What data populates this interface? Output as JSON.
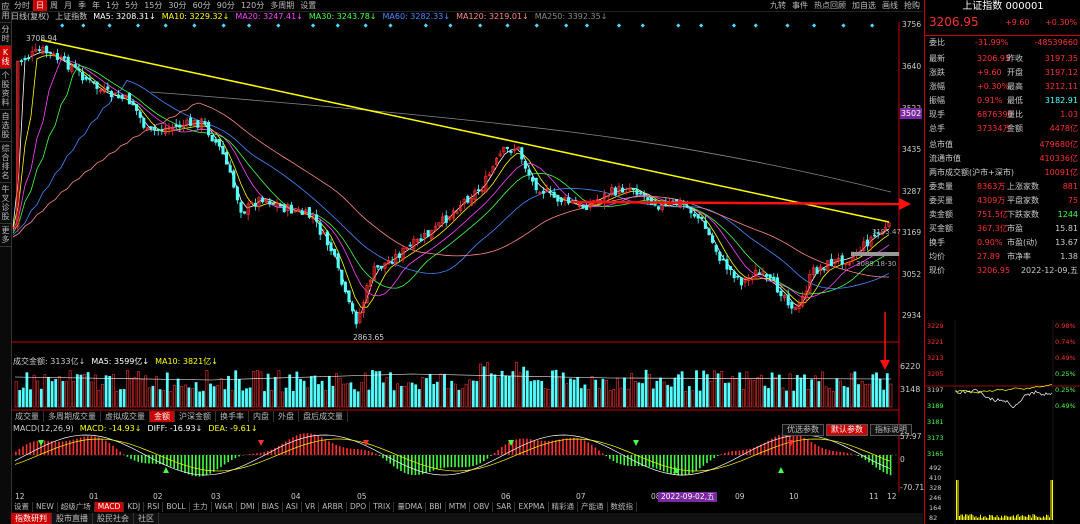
{
  "left_tabs": [
    "应用",
    "分时",
    "K线",
    "个股资料",
    "自选股",
    "综合排名",
    "牛叉诊股",
    "更多"
  ],
  "toolbar": {
    "periods": [
      "分时",
      "日",
      "周",
      "月",
      "季",
      "年",
      "1分",
      "5分",
      "15分",
      "30分",
      "60分",
      "90分",
      "120分",
      "多周期",
      "设置"
    ],
    "active_period": "日",
    "right_items": [
      "九转",
      "事件",
      "热点回顾",
      "加自选",
      "画线",
      "抢购"
    ]
  },
  "ma_line": {
    "prefix": "日线(复权)",
    "name": "上证指数",
    "ma5": "MA5: 3208.31↓",
    "ma10": "MA10: 3229.32↓",
    "ma20": "MA20: 3247.41↓",
    "ma30": "MA30: 3243.78↓",
    "ma60": "MA60: 3282.33↓",
    "ma120": "MA120: 3219.01↓",
    "ma250": "MA250: 3392.35↓"
  },
  "colors": {
    "up": "#ff3030",
    "down": "#54ffff",
    "ma5": "#ffffff",
    "ma10": "#ffff00",
    "ma20": "#ff44ff",
    "ma30": "#44ff44",
    "ma60": "#4488ff",
    "ma120": "#ff8888",
    "ma250": "#888888",
    "accent": "#cc0000"
  },
  "price_axis": [
    "3756",
    "3640",
    "3522",
    "3435",
    "3287",
    "3169",
    "3052",
    "2934"
  ],
  "price_tag": "3502",
  "annotations": {
    "high": "3708.94",
    "low": "2863.65",
    "last_low": "3195.47",
    "last_low2": "3089.18-30"
  },
  "volume": {
    "label": "成交金额: 3133亿↓",
    "ma5": "MA5: 3599亿↓",
    "ma10": "MA10: 3821亿↓",
    "axis": [
      "6220",
      "3148"
    ]
  },
  "sub_tabs": [
    "成交量",
    "多周期成交量",
    "虚拟成交量",
    "金额",
    "沪深金额",
    "换手率",
    "内盘",
    "外盘",
    "盘后成交量"
  ],
  "active_sub_tab": "金额",
  "macd": {
    "label": "MACD(12,26,9)",
    "macd": "MACD: -14.93↓",
    "diff": "DIFF: -16.93↓",
    "dea": "DEA: -9.61↓",
    "axis": [
      "57.97",
      "0",
      "-70.71"
    ],
    "buttons": [
      "优选参数",
      "默认参数",
      "指标说明"
    ]
  },
  "x_axis": [
    "12",
    "01",
    "02",
    "03",
    "04",
    "05",
    "06",
    "07",
    "08",
    "09",
    "10",
    "11",
    "12"
  ],
  "x_marker": "2022-09-02,五",
  "indicator_tabs": [
    "设置",
    "NEW",
    "超级广场",
    "MACD",
    "KDJ",
    "RSI",
    "BOLL",
    "主力",
    "W&R",
    "DMI",
    "BIAS",
    "ASI",
    "VR",
    "ARBR",
    "DPO",
    "TRIX",
    "量DMA",
    "BBI",
    "MTM",
    "OBV",
    "SAR",
    "EXPMA",
    "精彩通",
    "产能通",
    "数统指"
  ],
  "active_indicator": "MACD",
  "bottom_tabs": [
    "指数研判",
    "股市直播",
    "股民社会",
    "社区"
  ],
  "rpanel": {
    "title": "上证指数 000001",
    "price": "3206.95",
    "change": "+9.60",
    "pct": "+0.30%",
    "weibi_label": "委比",
    "weibi": "-31.99%",
    "weicha": "-48539660",
    "rows": [
      [
        "最新",
        "3206.95",
        "昨收",
        "3197.35"
      ],
      [
        "涨跌",
        "+9.60",
        "开盘",
        "3197.12"
      ],
      [
        "涨幅",
        "+0.30%",
        "最高",
        "3212.11"
      ],
      [
        "振幅",
        "0.91%",
        "最低",
        "3182.91"
      ],
      [
        "现手",
        "6876390",
        "量比",
        "1.03"
      ],
      [
        "总手",
        "37334万",
        "金额",
        "4478亿"
      ]
    ],
    "rows2": [
      [
        "总市值",
        "",
        "",
        "479680亿"
      ],
      [
        "流通市值",
        "",
        "",
        "410336亿"
      ],
      [
        "两市成交额(沪市+深市)",
        "",
        "",
        "10091亿"
      ],
      [
        "委卖量",
        "8363万",
        "上涨家数",
        "881"
      ],
      [
        "委买量",
        "4309万",
        "平盘家数",
        "75"
      ],
      [
        "卖金额",
        "751.5亿",
        "下跌家数",
        "1244"
      ],
      [
        "买金额",
        "367.3亿",
        "市盈",
        "15.81"
      ],
      [
        "换手",
        "0.90%",
        "市盈(动)",
        "13.67"
      ],
      [
        "均价",
        "27.89",
        "市净率",
        "1.38"
      ],
      [
        "现价",
        "3206.95",
        "",
        "2022-12-09,五"
      ]
    ],
    "mini_axis_left": [
      "3229",
      "3221",
      "3213",
      "3205",
      "3197",
      "3189",
      "3181",
      "3173",
      "3165"
    ],
    "mini_axis_right": [
      "0.98%",
      "0.74%",
      "0.49%",
      "0.25%",
      "0.25%",
      "0.49%"
    ],
    "mini_vol_axis": [
      "492",
      "410",
      "328",
      "246",
      "164",
      "82"
    ]
  }
}
